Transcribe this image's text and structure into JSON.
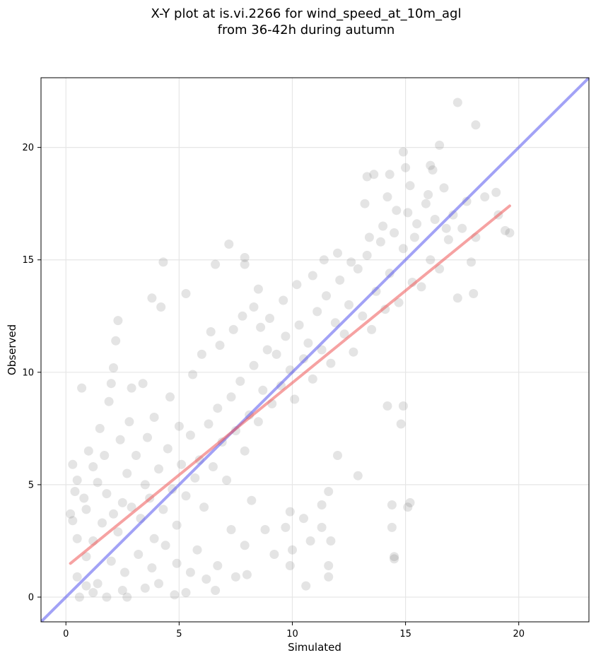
{
  "chart_data": {
    "type": "scatter",
    "title": [
      "X-Y plot at is.vi.2266 for wind_speed_at_10m_agl",
      "from 36-42h during autumn"
    ],
    "xlabel": "Simulated",
    "ylabel": "Observed",
    "xlim": [
      -1.1,
      23.1
    ],
    "ylim": [
      -1.1,
      23.1
    ],
    "xticks": [
      0,
      5,
      10,
      15,
      20
    ],
    "yticks": [
      0,
      5,
      10,
      15,
      20
    ],
    "grid": true,
    "points_color": "#555555",
    "series": [
      {
        "type": "scatter",
        "points": [
          [
            0.7,
            9.3
          ],
          [
            0.3,
            5.9
          ],
          [
            1.5,
            7.5
          ],
          [
            1.9,
            8.7
          ],
          [
            2.0,
            9.5
          ],
          [
            2.1,
            10.2
          ],
          [
            2.2,
            11.4
          ],
          [
            2.3,
            12.3
          ],
          [
            2.9,
            9.3
          ],
          [
            3.4,
            9.5
          ],
          [
            3.8,
            13.3
          ],
          [
            4.2,
            12.9
          ],
          [
            4.3,
            14.9
          ],
          [
            5.3,
            13.5
          ],
          [
            7.2,
            15.7
          ],
          [
            6.6,
            14.8
          ],
          [
            7.9,
            14.8
          ],
          [
            7.9,
            15.1
          ],
          [
            8.3,
            12.9
          ],
          [
            8.5,
            13.7
          ],
          [
            0.5,
            0.9
          ],
          [
            0.6,
            0.0
          ],
          [
            0.9,
            0.5
          ],
          [
            1.2,
            0.2
          ],
          [
            1.8,
            0.0
          ],
          [
            2.5,
            0.3
          ],
          [
            2.7,
            0.0
          ],
          [
            3.5,
            0.4
          ],
          [
            4.1,
            0.6
          ],
          [
            4.8,
            0.1
          ],
          [
            5.3,
            0.2
          ],
          [
            6.6,
            0.3
          ],
          [
            7.5,
            0.9
          ],
          [
            0.9,
            3.9
          ],
          [
            1.2,
            2.5
          ],
          [
            1.4,
            5.1
          ],
          [
            1.6,
            3.3
          ],
          [
            1.8,
            4.6
          ],
          [
            2.1,
            3.7
          ],
          [
            2.3,
            2.9
          ],
          [
            2.5,
            4.2
          ],
          [
            2.7,
            5.5
          ],
          [
            2.9,
            4.0
          ],
          [
            3.1,
            6.3
          ],
          [
            3.3,
            3.5
          ],
          [
            3.5,
            5.0
          ],
          [
            3.7,
            4.4
          ],
          [
            3.9,
            2.6
          ],
          [
            4.1,
            5.7
          ],
          [
            4.3,
            3.9
          ],
          [
            4.5,
            6.6
          ],
          [
            4.7,
            4.8
          ],
          [
            4.9,
            3.2
          ],
          [
            5.1,
            5.9
          ],
          [
            5.3,
            4.5
          ],
          [
            5.5,
            7.2
          ],
          [
            5.7,
            5.3
          ],
          [
            5.9,
            6.1
          ],
          [
            6.1,
            4.0
          ],
          [
            6.3,
            7.7
          ],
          [
            6.5,
            5.8
          ],
          [
            6.7,
            8.4
          ],
          [
            6.9,
            6.9
          ],
          [
            7.1,
            5.2
          ],
          [
            7.3,
            8.9
          ],
          [
            7.5,
            7.4
          ],
          [
            7.7,
            9.6
          ],
          [
            7.9,
            6.5
          ],
          [
            8.1,
            8.1
          ],
          [
            8.3,
            10.3
          ],
          [
            8.5,
            7.8
          ],
          [
            8.7,
            9.2
          ],
          [
            8.9,
            11.0
          ],
          [
            9.1,
            8.6
          ],
          [
            9.3,
            10.8
          ],
          [
            9.5,
            9.4
          ],
          [
            9.7,
            11.6
          ],
          [
            9.9,
            10.1
          ],
          [
            10.1,
            8.8
          ],
          [
            10.3,
            12.1
          ],
          [
            10.5,
            10.6
          ],
          [
            10.7,
            11.3
          ],
          [
            10.9,
            9.7
          ],
          [
            11.1,
            12.7
          ],
          [
            11.3,
            11.0
          ],
          [
            11.5,
            13.4
          ],
          [
            11.7,
            10.4
          ],
          [
            11.9,
            12.2
          ],
          [
            12.1,
            14.1
          ],
          [
            12.3,
            11.7
          ],
          [
            12.5,
            13.0
          ],
          [
            12.7,
            10.9
          ],
          [
            12.9,
            14.6
          ],
          [
            13.1,
            12.5
          ],
          [
            13.3,
            15.2
          ],
          [
            13.5,
            11.9
          ],
          [
            13.7,
            13.6
          ],
          [
            13.9,
            15.8
          ],
          [
            14.1,
            12.8
          ],
          [
            14.3,
            14.4
          ],
          [
            14.5,
            16.2
          ],
          [
            14.7,
            13.1
          ],
          [
            14.9,
            15.5
          ],
          [
            15.1,
            17.1
          ],
          [
            15.3,
            14.0
          ],
          [
            15.5,
            16.6
          ],
          [
            15.7,
            13.8
          ],
          [
            15.9,
            17.5
          ],
          [
            16.1,
            15.0
          ],
          [
            16.3,
            16.8
          ],
          [
            16.5,
            14.6
          ],
          [
            16.7,
            18.2
          ],
          [
            16.9,
            15.9
          ],
          [
            17.1,
            17.0
          ],
          [
            17.3,
            13.3
          ],
          [
            17.5,
            16.4
          ],
          [
            17.7,
            17.6
          ],
          [
            17.9,
            14.9
          ],
          [
            18.0,
            13.5
          ],
          [
            18.1,
            16.0
          ],
          [
            17.3,
            22.0
          ],
          [
            18.1,
            21.0
          ],
          [
            16.5,
            20.1
          ],
          [
            14.9,
            19.8
          ],
          [
            15.0,
            19.1
          ],
          [
            15.2,
            18.3
          ],
          [
            14.3,
            18.8
          ],
          [
            13.6,
            18.8
          ],
          [
            13.2,
            17.5
          ],
          [
            13.3,
            18.7
          ],
          [
            14.2,
            17.8
          ],
          [
            16.1,
            19.2
          ],
          [
            16.2,
            19.0
          ],
          [
            19.0,
            18.0
          ],
          [
            19.4,
            16.3
          ],
          [
            19.6,
            16.2
          ],
          [
            19.1,
            17.0
          ],
          [
            18.5,
            17.8
          ],
          [
            14.4,
            4.1
          ],
          [
            14.4,
            3.1
          ],
          [
            14.5,
            1.8
          ],
          [
            14.5,
            1.7
          ],
          [
            15.1,
            4.0
          ],
          [
            15.2,
            4.2
          ],
          [
            14.8,
            7.7
          ],
          [
            14.9,
            8.5
          ],
          [
            14.2,
            8.5
          ],
          [
            10.6,
            0.5
          ],
          [
            11.6,
            1.4
          ],
          [
            11.6,
            0.9
          ],
          [
            11.3,
            3.1
          ],
          [
            11.7,
            2.5
          ],
          [
            10.8,
            2.5
          ],
          [
            10.0,
            2.1
          ],
          [
            9.9,
            1.4
          ],
          [
            12.0,
            6.3
          ],
          [
            12.9,
            5.4
          ],
          [
            11.6,
            4.7
          ],
          [
            11.3,
            4.1
          ],
          [
            10.5,
            3.5
          ],
          [
            9.9,
            3.8
          ],
          [
            9.7,
            3.1
          ],
          [
            9.2,
            1.9
          ],
          [
            8.8,
            3.0
          ],
          [
            8.2,
            4.3
          ],
          [
            7.9,
            2.3
          ],
          [
            8.0,
            1.0
          ],
          [
            7.3,
            3.0
          ],
          [
            6.7,
            1.4
          ],
          [
            6.2,
            0.8
          ],
          [
            5.5,
            1.1
          ],
          [
            5.8,
            2.1
          ],
          [
            4.9,
            1.5
          ],
          [
            4.4,
            2.3
          ],
          [
            3.8,
            1.3
          ],
          [
            3.2,
            1.9
          ],
          [
            2.6,
            1.1
          ],
          [
            2.0,
            1.6
          ],
          [
            1.4,
            0.6
          ],
          [
            0.9,
            1.8
          ],
          [
            0.5,
            2.6
          ],
          [
            0.3,
            3.4
          ],
          [
            0.8,
            4.4
          ],
          [
            0.5,
            5.2
          ],
          [
            0.4,
            4.7
          ],
          [
            0.2,
            3.7
          ],
          [
            1.0,
            6.5
          ],
          [
            1.2,
            5.8
          ],
          [
            1.7,
            6.3
          ],
          [
            2.4,
            7.0
          ],
          [
            2.8,
            7.8
          ],
          [
            3.6,
            7.1
          ],
          [
            3.9,
            8.0
          ],
          [
            4.6,
            8.9
          ],
          [
            5.0,
            7.6
          ],
          [
            5.6,
            9.9
          ],
          [
            6.0,
            10.8
          ],
          [
            6.4,
            11.8
          ],
          [
            6.8,
            11.2
          ],
          [
            7.4,
            11.9
          ],
          [
            7.8,
            12.5
          ],
          [
            8.6,
            12.0
          ],
          [
            9.0,
            12.4
          ],
          [
            9.6,
            13.2
          ],
          [
            10.2,
            13.9
          ],
          [
            10.9,
            14.3
          ],
          [
            11.4,
            15.0
          ],
          [
            12.0,
            15.3
          ],
          [
            12.6,
            14.9
          ],
          [
            13.4,
            16.0
          ],
          [
            14.0,
            16.5
          ],
          [
            14.6,
            17.2
          ],
          [
            15.4,
            16.0
          ],
          [
            16.0,
            17.9
          ],
          [
            16.8,
            16.4
          ]
        ]
      },
      {
        "name": "1:1",
        "type": "line",
        "color": "#5555ee",
        "points": [
          [
            -1.1,
            -1.1
          ],
          [
            23.1,
            23.1
          ]
        ]
      },
      {
        "name": "fit",
        "type": "line",
        "color": "#ee5555",
        "points": [
          [
            0.2,
            1.5
          ],
          [
            19.6,
            17.4
          ]
        ]
      }
    ]
  }
}
